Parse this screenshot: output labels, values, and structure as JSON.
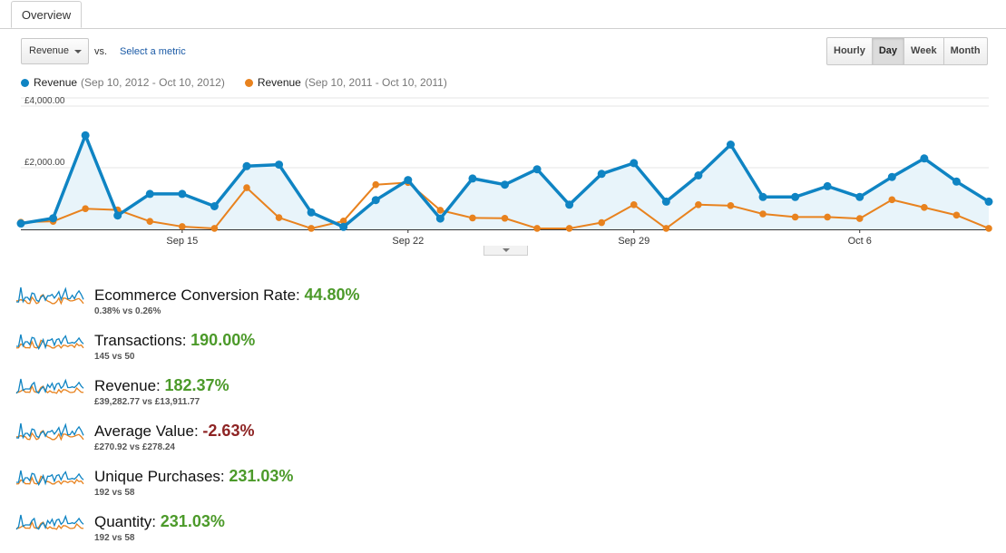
{
  "tabs": [
    {
      "label": "Overview"
    }
  ],
  "controls": {
    "metric_select": "Revenue",
    "vs_label": "vs.",
    "select_metric_link": "Select a metric",
    "granularity": [
      {
        "label": "Hourly",
        "active": false
      },
      {
        "label": "Day",
        "active": true
      },
      {
        "label": "Week",
        "active": false
      },
      {
        "label": "Month",
        "active": false
      }
    ]
  },
  "colors": {
    "series_current": "#0f84c3",
    "series_previous": "#e8821e",
    "positive": "#4c9a2a",
    "negative": "#8e2424"
  },
  "legend": [
    {
      "name": "Revenue",
      "range": "(Sep 10, 2012 - Oct 10, 2012)",
      "color": "#0f84c3"
    },
    {
      "name": "Revenue",
      "range": "(Sep 10, 2011 - Oct 10, 2011)",
      "color": "#e8821e"
    }
  ],
  "chart_data": {
    "type": "line",
    "ylim": [
      0,
      4000
    ],
    "yticks": [
      "£4,000.00",
      "£2,000.00"
    ],
    "ytick_values": [
      4000,
      2000
    ],
    "x_tick_labels": [
      {
        "label": "Sep 15",
        "index": 5
      },
      {
        "label": "Sep 22",
        "index": 12
      },
      {
        "label": "Sep 29",
        "index": 19
      },
      {
        "label": "Oct 6",
        "index": 26
      }
    ],
    "series": [
      {
        "name": "Revenue",
        "color": "#0f84c3",
        "area": true,
        "values": [
          190,
          360,
          3050,
          450,
          1150,
          1150,
          750,
          2050,
          2100,
          550,
          80,
          950,
          1600,
          350,
          1650,
          1450,
          1950,
          800,
          1800,
          2150,
          900,
          1750,
          2750,
          1050,
          1050,
          1400,
          1050,
          1700,
          2300,
          1550,
          900
        ]
      },
      {
        "name": "Revenue",
        "color": "#e8821e",
        "area": false,
        "values": [
          230,
          260,
          670,
          630,
          260,
          90,
          30,
          1350,
          380,
          30,
          270,
          1450,
          1520,
          620,
          370,
          360,
          30,
          30,
          220,
          800,
          30,
          800,
          770,
          500,
          400,
          400,
          350,
          960,
          710,
          460,
          30
        ]
      }
    ]
  },
  "metrics": [
    {
      "name": "Ecommerce Conversion Rate:",
      "pct": "44.80%",
      "sub": "0.38% vs 0.26%",
      "positive": true
    },
    {
      "name": "Transactions:",
      "pct": "190.00%",
      "sub": "145 vs 50",
      "positive": true
    },
    {
      "name": "Revenue:",
      "pct": "182.37%",
      "sub": "£39,282.77 vs £13,911.77",
      "positive": true
    },
    {
      "name": "Average Value:",
      "pct": "-2.63%",
      "sub": "£270.92 vs £278.24",
      "positive": false
    },
    {
      "name": "Unique Purchases:",
      "pct": "231.03%",
      "sub": "192 vs 58",
      "positive": true
    },
    {
      "name": "Quantity:",
      "pct": "231.03%",
      "sub": "192 vs 58",
      "positive": true
    }
  ]
}
